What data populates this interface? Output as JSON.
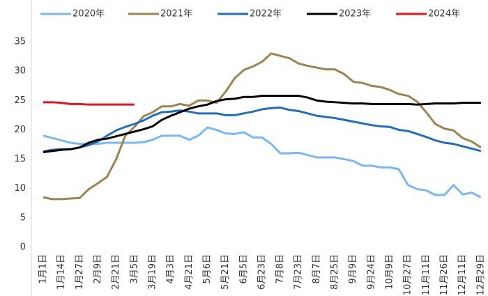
{
  "chart_data": {
    "type": "line",
    "categories": [
      "1月1日",
      null,
      "1月14日",
      null,
      "1月27日",
      null,
      "2月9日",
      null,
      "2月21日",
      null,
      "3月5日",
      null,
      "3月19日",
      null,
      "4月3日",
      null,
      "4月21日",
      null,
      "5月6日",
      null,
      "5月21日",
      null,
      "6月5日",
      null,
      "6月23日",
      null,
      "7月8日",
      null,
      "7月23日",
      null,
      "8月7日",
      null,
      "8月25日",
      null,
      "9月9日",
      null,
      "9月24日",
      null,
      "10月9日",
      null,
      "10月27日",
      null,
      "11月11日",
      null,
      "11月26日",
      null,
      "12月11日",
      null,
      "12月29日"
    ],
    "series": [
      {
        "name": "2020年",
        "color": "#7ab8f5",
        "values": [
          19.0,
          18.6,
          18.2,
          17.8,
          17.6,
          17.6,
          17.6,
          17.8,
          17.8,
          17.8,
          17.8,
          17.9,
          18.3,
          19.0,
          19.0,
          19.0,
          18.3,
          19.0,
          20.4,
          20.0,
          19.4,
          19.3,
          19.6,
          18.7,
          18.7,
          17.6,
          16.0,
          16.0,
          16.1,
          15.7,
          15.3,
          15.3,
          15.3,
          15.0,
          14.7,
          13.9,
          13.9,
          13.6,
          13.6,
          13.3,
          10.6,
          9.9,
          9.7,
          8.9,
          8.9,
          10.6,
          9.0,
          9.3,
          8.5
        ]
      },
      {
        "name": "2021年",
        "color": "#9c8350",
        "values": [
          8.5,
          8.2,
          8.2,
          8.3,
          8.4,
          9.9,
          10.9,
          12.0,
          15.0,
          19.0,
          20.5,
          22.3,
          23.0,
          24.0,
          24.0,
          24.4,
          24.1,
          25.0,
          25.0,
          24.6,
          26.5,
          28.8,
          30.2,
          30.8,
          31.6,
          33.0,
          32.6,
          32.2,
          31.3,
          30.9,
          30.6,
          30.3,
          30.3,
          29.5,
          28.2,
          28.0,
          27.5,
          27.3,
          26.8,
          26.1,
          25.8,
          24.8,
          23.0,
          21.0,
          20.2,
          19.9,
          18.6,
          18.0,
          17.0
        ]
      },
      {
        "name": "2022年",
        "color": "#1f6fc0",
        "values": [
          16.3,
          16.6,
          16.7,
          16.7,
          17.0,
          17.4,
          18.0,
          19.0,
          19.9,
          20.5,
          21.0,
          21.6,
          22.4,
          23.0,
          23.1,
          23.3,
          23.1,
          22.8,
          22.8,
          22.8,
          22.5,
          22.5,
          22.8,
          23.1,
          23.5,
          23.7,
          23.8,
          23.4,
          23.2,
          22.8,
          22.4,
          22.2,
          22.0,
          21.7,
          21.4,
          21.1,
          20.8,
          20.6,
          20.5,
          20.0,
          19.8,
          19.3,
          18.8,
          18.2,
          17.8,
          17.6,
          17.2,
          16.8,
          16.4
        ]
      },
      {
        "name": "2023年",
        "color": "#000000",
        "values": [
          16.2,
          16.4,
          16.6,
          16.7,
          17.0,
          17.8,
          18.3,
          18.5,
          18.9,
          19.3,
          19.7,
          20.1,
          20.6,
          21.7,
          22.4,
          23.0,
          23.6,
          24.0,
          24.3,
          24.9,
          25.2,
          25.3,
          25.6,
          25.6,
          25.8,
          25.8,
          25.8,
          25.8,
          25.8,
          25.5,
          25.0,
          24.8,
          24.7,
          24.6,
          24.5,
          24.5,
          24.4,
          24.4,
          24.4,
          24.4,
          24.4,
          24.3,
          24.4,
          24.5,
          24.5,
          24.5,
          24.6,
          24.6,
          24.6
        ]
      },
      {
        "name": "2024年",
        "color": "#e8141c",
        "values": [
          24.7,
          24.7,
          24.6,
          24.4,
          24.4,
          24.3,
          24.3,
          24.3,
          24.3,
          24.3,
          24.3,
          null,
          null,
          null,
          null,
          null,
          null,
          null,
          null,
          null,
          null,
          null,
          null,
          null,
          null,
          null,
          null,
          null,
          null,
          null,
          null,
          null,
          null,
          null,
          null,
          null,
          null,
          null,
          null,
          null,
          null,
          null,
          null,
          null,
          null,
          null,
          null,
          null,
          null
        ]
      }
    ],
    "ylim": [
      0,
      35
    ],
    "yticks": [
      0,
      5,
      10,
      15,
      20,
      25,
      30,
      35
    ],
    "legend": "top"
  }
}
